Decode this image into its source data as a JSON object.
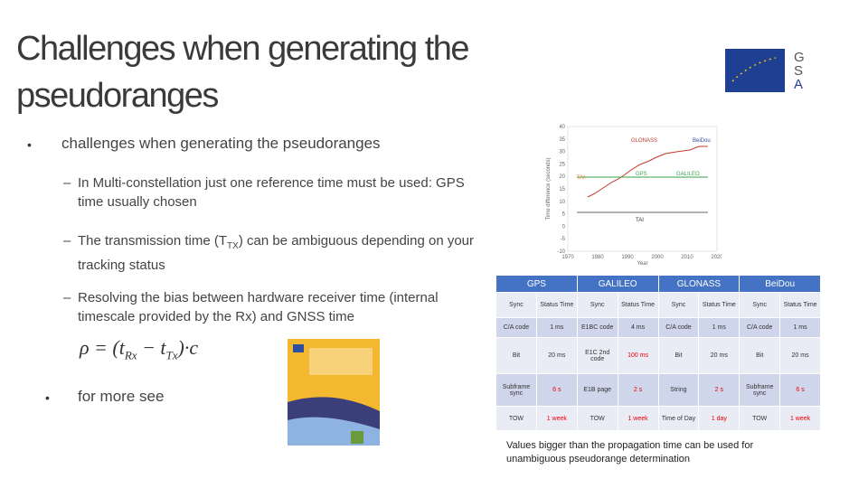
{
  "title": "Challenges when generating the pseudoranges",
  "bullets": [
    {
      "text": "challenges when generating the pseudoranges"
    },
    {
      "text": "In Multi-constellation just one reference time must be used: GPS time usually chosen"
    },
    {
      "parts": [
        "The transmission time (T",
        "TX",
        ") can be ambiguous depending on your tracking status"
      ]
    },
    {
      "text": "Resolving the bias between hardware receiver time (internal timescale provided by the Rx) and GNSS time"
    },
    {
      "text": "for more see"
    }
  ],
  "formula": {
    "lhs": "ρ = (t",
    "sub1": "Rx",
    "mid": " − t",
    "sub2": "Tx",
    "rhs": ")·c"
  },
  "figure": {
    "y_label": "Time difference (seconds)",
    "x_label": "Year",
    "yticks": [
      "40",
      "35",
      "30",
      "25",
      "20",
      "15",
      "10",
      "5",
      "0",
      "-5",
      "-10"
    ],
    "xticks": [
      "1970",
      "1980",
      "1990",
      "2000",
      "2010",
      "2020"
    ],
    "labels": [
      "GLONASS",
      "BeiDou",
      "GPS",
      "GALILEO",
      "TAI",
      "TAI"
    ]
  },
  "table": {
    "systems": [
      "GPS",
      "GALILEO",
      "GLONASS",
      "BeiDou"
    ],
    "subheaders": [
      "Sync",
      "Status Time",
      "Sync",
      "Status Time",
      "Sync",
      "Status Time",
      "Sync",
      "Status Time"
    ],
    "rows": [
      [
        "C/A code",
        "1 ms",
        "E1BC code",
        "4 ms",
        "C/A code",
        "1 ms",
        "C/A code",
        "1 ms"
      ],
      [
        "Bit",
        "20 ms",
        "E1C 2nd code",
        "100 ms",
        "Bit",
        "20 ms",
        "Bit",
        "20 ms"
      ],
      [
        "Subframe sync",
        "6 s",
        "E1B page",
        "2 s",
        "String",
        "2 s",
        "Subframe sync",
        "6 s"
      ],
      [
        "TOW",
        "1 week",
        "TOW",
        "1 week",
        "Time of Day",
        "1 day",
        "TOW",
        "1 week"
      ]
    ]
  },
  "note": "Values bigger than the propagation time can be used for unambiguous pseudorange determination"
}
